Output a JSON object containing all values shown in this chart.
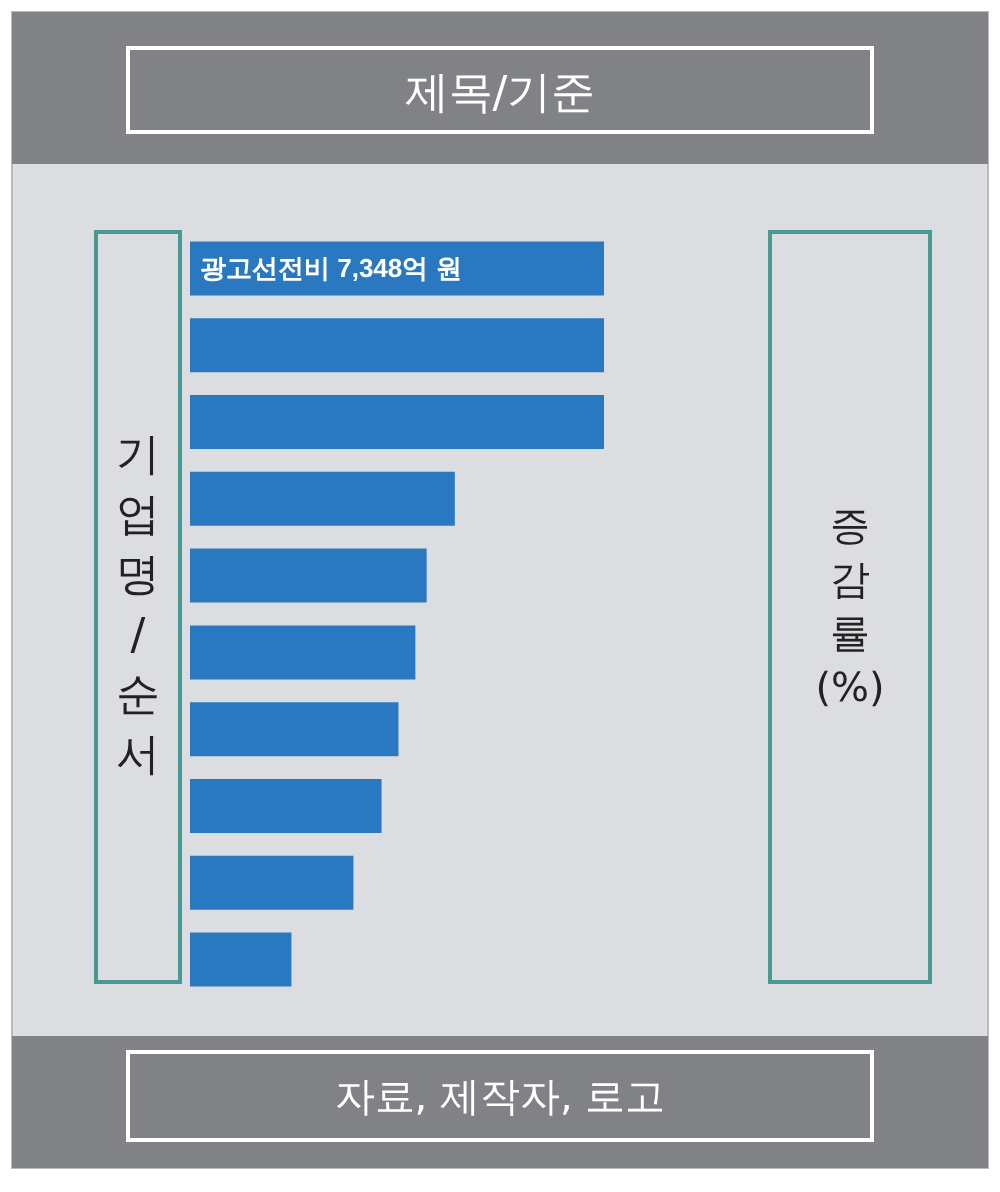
{
  "chart_data": {
    "type": "bar",
    "orientation": "horizontal",
    "title": "제목/기준",
    "ylabel": "기업명/순서",
    "annotations": [
      "증감률(%)",
      "자료, 제작자, 로고"
    ],
    "categories": [
      null,
      null,
      null,
      null,
      null,
      null,
      null,
      null,
      null,
      null
    ],
    "values": [
      7348,
      7348,
      7348,
      4700,
      4200,
      4000,
      3700,
      3400,
      2900,
      1800
    ],
    "value_labels": [
      "광고선전비 7,348억 원",
      null,
      null,
      null,
      null,
      null,
      null,
      null,
      null,
      null
    ],
    "color": "#2a78bf"
  }
}
